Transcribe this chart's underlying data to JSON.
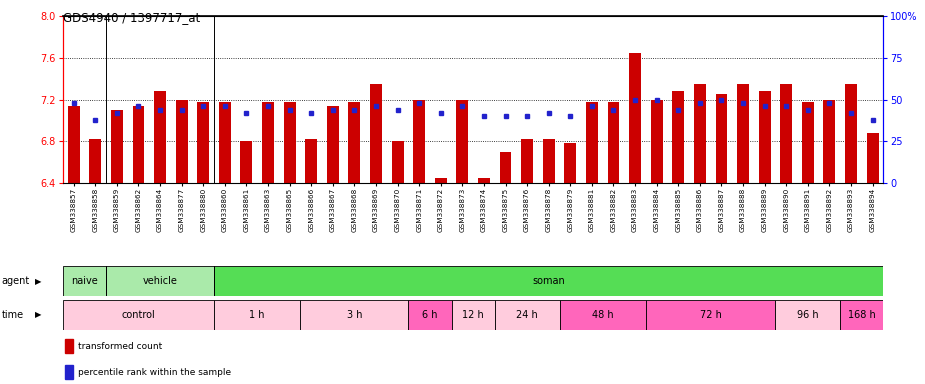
{
  "title": "GDS4940 / 1397717_at",
  "samples": [
    "GSM338857",
    "GSM338858",
    "GSM338859",
    "GSM338862",
    "GSM338864",
    "GSM338877",
    "GSM338880",
    "GSM338860",
    "GSM338861",
    "GSM338863",
    "GSM338865",
    "GSM338866",
    "GSM338867",
    "GSM338868",
    "GSM338869",
    "GSM338870",
    "GSM338871",
    "GSM338872",
    "GSM338873",
    "GSM338874",
    "GSM338875",
    "GSM338876",
    "GSM338878",
    "GSM338879",
    "GSM338881",
    "GSM338882",
    "GSM338883",
    "GSM338884",
    "GSM338885",
    "GSM338886",
    "GSM338887",
    "GSM338888",
    "GSM338889",
    "GSM338890",
    "GSM338891",
    "GSM338892",
    "GSM338893",
    "GSM338894"
  ],
  "bar_values": [
    7.14,
    6.82,
    7.1,
    7.14,
    7.28,
    7.2,
    7.18,
    7.18,
    6.8,
    7.18,
    7.18,
    6.82,
    7.14,
    7.18,
    7.35,
    6.8,
    7.2,
    6.45,
    7.2,
    6.45,
    6.7,
    6.82,
    6.82,
    6.78,
    7.18,
    7.18,
    7.65,
    7.2,
    7.28,
    7.35,
    7.25,
    7.35,
    7.28,
    7.35,
    7.18,
    7.2,
    7.35,
    6.88
  ],
  "percentile_values": [
    48,
    38,
    42,
    46,
    44,
    44,
    46,
    46,
    42,
    46,
    44,
    42,
    44,
    44,
    46,
    44,
    48,
    42,
    46,
    40,
    40,
    40,
    42,
    40,
    46,
    44,
    50,
    50,
    44,
    48,
    50,
    48,
    46,
    46,
    44,
    48,
    42,
    38
  ],
  "ylim_left": [
    6.4,
    8.0
  ],
  "ylim_right": [
    0,
    100
  ],
  "yticks_left": [
    6.4,
    6.8,
    7.2,
    7.6,
    8.0
  ],
  "yticks_right": [
    0,
    25,
    50,
    75,
    100
  ],
  "bar_color": "#CC0000",
  "marker_color": "#2222CC",
  "bar_bottom": 6.4,
  "bar_width": 0.55,
  "agent_groups": [
    {
      "label": "naive",
      "start": 0,
      "end": 2,
      "color": "#AAEAAA"
    },
    {
      "label": "vehicle",
      "start": 2,
      "end": 7,
      "color": "#AAEAAA"
    },
    {
      "label": "soman",
      "start": 7,
      "end": 38,
      "color": "#55DD55"
    }
  ],
  "time_groups": [
    {
      "label": "control",
      "start": 0,
      "end": 7,
      "color": "#FFCCDD"
    },
    {
      "label": "1 h",
      "start": 7,
      "end": 11,
      "color": "#FFCCDD"
    },
    {
      "label": "3 h",
      "start": 11,
      "end": 16,
      "color": "#FFCCDD"
    },
    {
      "label": "6 h",
      "start": 16,
      "end": 18,
      "color": "#FF66BB"
    },
    {
      "label": "12 h",
      "start": 18,
      "end": 20,
      "color": "#FFCCDD"
    },
    {
      "label": "24 h",
      "start": 20,
      "end": 23,
      "color": "#FFCCDD"
    },
    {
      "label": "48 h",
      "start": 23,
      "end": 27,
      "color": "#FF66BB"
    },
    {
      "label": "72 h",
      "start": 27,
      "end": 33,
      "color": "#FF66BB"
    },
    {
      "label": "96 h",
      "start": 33,
      "end": 36,
      "color": "#FFCCDD"
    },
    {
      "label": "168 h",
      "start": 36,
      "end": 38,
      "color": "#FF66BB"
    }
  ],
  "naive_boundary": 2,
  "vehicle_boundary": 7,
  "bg_color": "#F5F5F5"
}
